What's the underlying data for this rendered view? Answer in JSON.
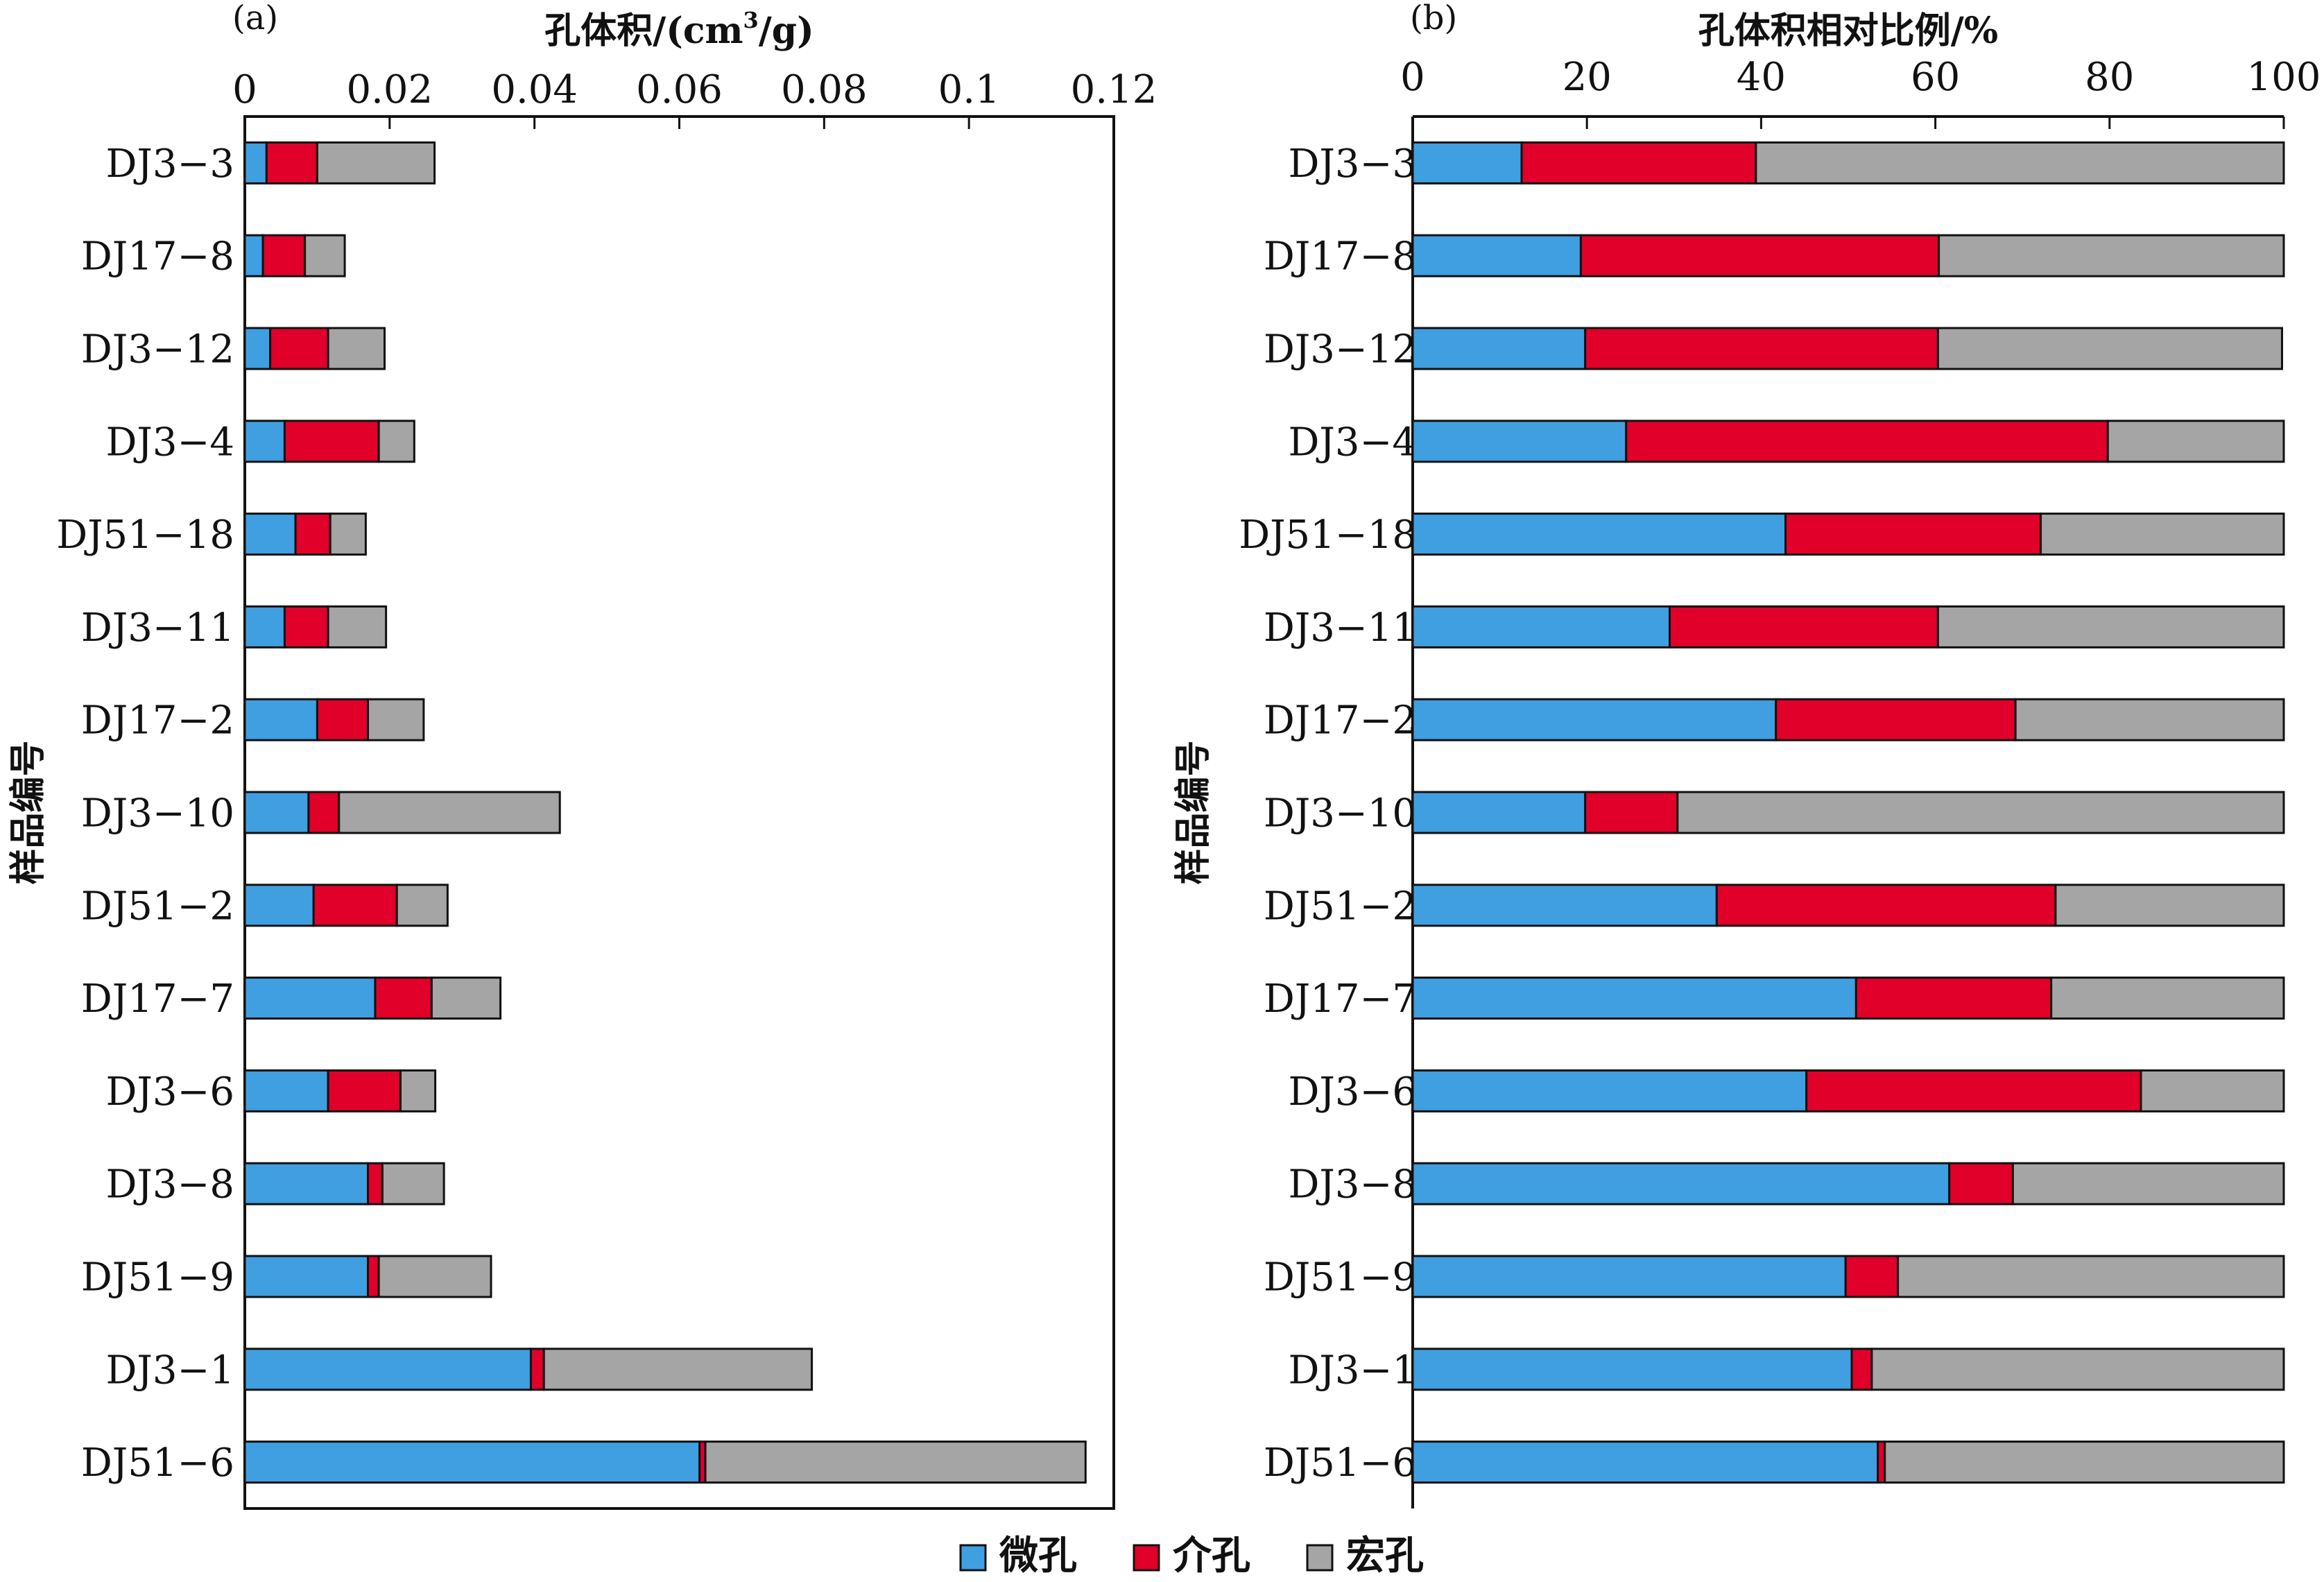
{
  "colors": {
    "micro": "#3f9fe0",
    "meso": "#e0002a",
    "macro": "#a5a5a5",
    "axis": "#111111",
    "bar_outline": "#111111"
  },
  "legend": [
    {
      "key": "micro",
      "label": "微孔"
    },
    {
      "key": "meso",
      "label": "介孔"
    },
    {
      "key": "macro",
      "label": "宏孔"
    }
  ],
  "chart_data": [
    {
      "panel": "(a)",
      "type": "bar",
      "orientation": "horizontal",
      "stacked": true,
      "title": "",
      "xlabel": "孔体积/(cm³/g)",
      "xlabel_parts": {
        "before": "孔体积/(cm",
        "sup": "3",
        "after": "/g)"
      },
      "ylabel": "样品编号",
      "xlim": [
        0,
        0.12
      ],
      "xticks": [
        0,
        0.02,
        0.04,
        0.06,
        0.08,
        0.1,
        0.12
      ],
      "xtick_labels": [
        "0",
        "0.02",
        "0.04",
        "0.06",
        "0.08",
        "0.1",
        "0.12"
      ],
      "x_axis_position": "top",
      "categories": [
        "DJ3−3",
        "DJ17−8",
        "DJ3−12",
        "DJ3−4",
        "DJ51−18",
        "DJ3−11",
        "DJ17−2",
        "DJ3−10",
        "DJ51−2",
        "DJ17−7",
        "DJ3−6",
        "DJ3−8",
        "DJ51−9",
        "DJ3−1",
        "DJ51−6"
      ],
      "series": [
        {
          "name": "微孔",
          "key": "micro",
          "values": [
            0.003,
            0.0025,
            0.0035,
            0.0055,
            0.007,
            0.0055,
            0.01,
            0.0088,
            0.0095,
            0.018,
            0.0115,
            0.017,
            0.017,
            0.0395,
            0.0628
          ]
        },
        {
          "name": "介孔",
          "key": "meso",
          "values": [
            0.007,
            0.0058,
            0.008,
            0.013,
            0.0048,
            0.006,
            0.007,
            0.0042,
            0.0115,
            0.0078,
            0.01,
            0.002,
            0.0015,
            0.0018,
            0.0008
          ]
        },
        {
          "name": "宏孔",
          "key": "macro",
          "values": [
            0.0162,
            0.0055,
            0.0078,
            0.0049,
            0.0049,
            0.008,
            0.0077,
            0.0305,
            0.007,
            0.0095,
            0.0048,
            0.0085,
            0.0155,
            0.037,
            0.0525
          ]
        }
      ]
    },
    {
      "panel": "(b)",
      "type": "bar",
      "orientation": "horizontal",
      "stacked": true,
      "title": "",
      "xlabel": "孔体积相对比例/%",
      "ylabel": "样品编号",
      "xlim": [
        0,
        100
      ],
      "xticks": [
        0,
        20,
        40,
        60,
        80,
        100
      ],
      "xtick_labels": [
        "0",
        "20",
        "40",
        "60",
        "80",
        "100"
      ],
      "x_axis_position": "top",
      "categories": [
        "DJ3−3",
        "DJ17−8",
        "DJ3−12",
        "DJ3−4",
        "DJ51−18",
        "DJ3−11",
        "DJ17−2",
        "DJ3−10",
        "DJ51−2",
        "DJ17−7",
        "DJ3−6",
        "DJ3−8",
        "DJ51−9",
        "DJ3−1",
        "DJ51−6"
      ],
      "series": [
        {
          "name": "微孔",
          "key": "micro",
          "values": [
            12.5,
            19.3,
            19.8,
            24.5,
            42.8,
            29.5,
            41.7,
            19.8,
            34.9,
            50.9,
            45.2,
            61.6,
            49.7,
            50.4,
            53.4
          ]
        },
        {
          "name": "介孔",
          "key": "meso",
          "values": [
            26.9,
            41.1,
            40.5,
            55.3,
            29.3,
            30.8,
            27.5,
            10.6,
            38.9,
            22.4,
            38.4,
            7.3,
            6.0,
            2.3,
            0.8
          ]
        },
        {
          "name": "宏孔",
          "key": "macro",
          "values": [
            60.6,
            39.6,
            39.5,
            20.2,
            27.9,
            39.7,
            30.8,
            69.6,
            26.2,
            26.7,
            16.4,
            31.1,
            44.3,
            47.3,
            45.8
          ]
        }
      ]
    }
  ]
}
